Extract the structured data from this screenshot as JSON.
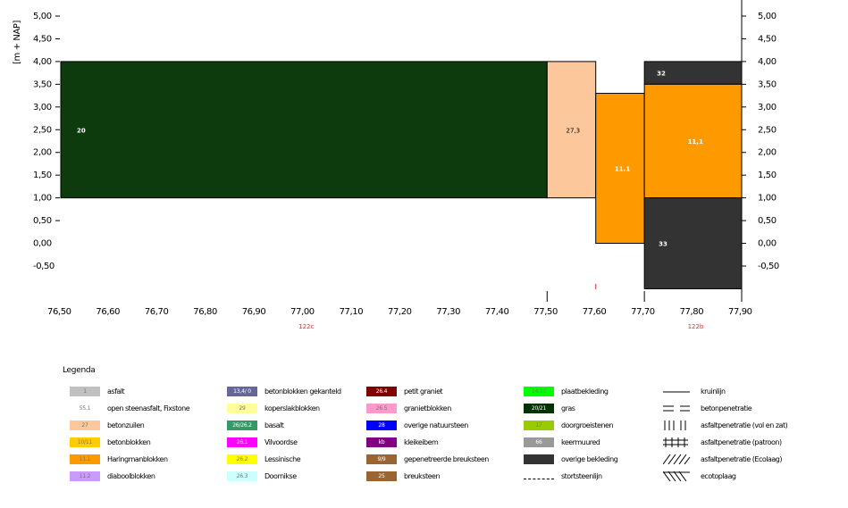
{
  "chart_data": {
    "type": "profile",
    "ylabel": "[m + NAP]",
    "xlim": [
      76.5,
      77.9
    ],
    "ylim": [
      -0.5,
      5.0
    ],
    "y_ticks_left": [
      "5,00",
      "4,50",
      "4,00",
      "3,50",
      "3,00",
      "2,50",
      "2,00",
      "1,50",
      "1,00",
      "0,50",
      "0,00",
      "-0,50"
    ],
    "y_ticks_right": [
      "5,00",
      "4,50",
      "4,00",
      "3,50",
      "3,00",
      "2,50",
      "2,00",
      "1,50",
      "1,00",
      "0,50",
      "0,00",
      "-0,50"
    ],
    "x_ticks": [
      "76,50",
      "76,60",
      "76,70",
      "76,80",
      "76,90",
      "77,00",
      "77,10",
      "77,20",
      "77,30",
      "77,40",
      "77,50",
      "77,60",
      "77,70",
      "77,80",
      "77,90"
    ],
    "segments": [
      {
        "x0": 76.5,
        "x1": 77.5,
        "y0": 1.0,
        "y1": 4.0,
        "label": "20",
        "color": "#0d3b0d"
      },
      {
        "x0": 77.5,
        "x1": 77.6,
        "y0": 1.0,
        "y1": 4.0,
        "label": "27,3",
        "color": "#fcc89b"
      },
      {
        "x0": 77.6,
        "x1": 77.7,
        "y0": 0.0,
        "y1": 3.3,
        "label": "11.1",
        "color": "#ff9900"
      },
      {
        "x0": 77.7,
        "x1": 77.9,
        "y0": 3.5,
        "y1": 4.0,
        "label": "32",
        "color": "#333333"
      },
      {
        "x0": 77.7,
        "x1": 77.9,
        "y0": 1.0,
        "y1": 3.5,
        "label": "11,1",
        "color": "#ff9900"
      },
      {
        "x0": 77.7,
        "x1": 77.9,
        "y0": -1.0,
        "y1": 1.0,
        "label": "33",
        "color": "#333333"
      }
    ],
    "section_labels": [
      {
        "x": 77.0,
        "label": "122c"
      },
      {
        "x": 77.8,
        "label": "122b"
      }
    ]
  },
  "legend": {
    "title": "Legenda",
    "columns": [
      [
        {
          "swatch": "1",
          "color": "#c0c0c0",
          "label": "asfalt"
        },
        {
          "swatch": "55.1",
          "color": "#ffffff",
          "label": "open steenasfalt, Fixstone"
        },
        {
          "swatch": "27",
          "color": "#fcc89b",
          "label": "betonzuilen"
        },
        {
          "swatch": "10/11",
          "color": "#ffcc00",
          "label": "betonblokken"
        },
        {
          "swatch": "11.1",
          "color": "#ff9900",
          "label": "Haringmanblokken"
        },
        {
          "swatch": "11.2",
          "color": "#cc99ff",
          "label": "diaboolblokken"
        }
      ],
      [
        {
          "swatch": "13,4/ 0",
          "color": "#666699",
          "label": "betonblokken gekanteld"
        },
        {
          "swatch": "29",
          "color": "#ffff99",
          "label": "koperslakblokken"
        },
        {
          "swatch": "26/26.2",
          "color": "#339966",
          "label": "basalt"
        },
        {
          "swatch": "26.1",
          "color": "#ff00ff",
          "label": "Vilvoordse"
        },
        {
          "swatch": "26.2",
          "color": "#ffff00",
          "label": "Lessinische"
        },
        {
          "swatch": "26.3",
          "color": "#ccffff",
          "label": "Doornikse"
        }
      ],
      [
        {
          "swatch": "26.4",
          "color": "#800000",
          "label": "petit graniet"
        },
        {
          "swatch": "26.5",
          "color": "#ff99cc",
          "label": "granietblokken"
        },
        {
          "swatch": "28",
          "color": "#0000ff",
          "label": "overige natuursteen"
        },
        {
          "swatch": "kb",
          "color": "#800080",
          "label": "kleikeibem"
        },
        {
          "swatch": "9/9",
          "color": "#996633",
          "label": "gepenetreerde breuksteen"
        },
        {
          "swatch": "25",
          "color": "#996633",
          "label": "breuksteen"
        }
      ],
      [
        {
          "swatch": "14.12",
          "color": "#00ff00",
          "label": "plaatbekleding"
        },
        {
          "swatch": "20/21",
          "color": "#003300",
          "label": "gras"
        },
        {
          "swatch": "17",
          "color": "#99cc00",
          "label": "doorgroeistenen"
        },
        {
          "swatch": "66",
          "color": "#999999",
          "label": "keermuured"
        },
        {
          "swatch": "",
          "color": "#333333",
          "label": "overige bekleding"
        },
        {
          "swatch": "",
          "color": "none",
          "label": "stortsteenlijn"
        }
      ],
      [
        {
          "symbol": "line",
          "label": "kruinlijn"
        },
        {
          "symbol": "beton",
          "label": "betonpenetratie"
        },
        {
          "symbol": "vol",
          "label": "asfaltpenetratie (vol en zat)"
        },
        {
          "symbol": "patroon",
          "label": "asfaltpenetratie (patroon)"
        },
        {
          "symbol": "ecolaag",
          "label": "asfaltpenetratie (Ecolaag)"
        },
        {
          "symbol": "ecoto",
          "label": "ecotoplaag"
        }
      ]
    ]
  }
}
